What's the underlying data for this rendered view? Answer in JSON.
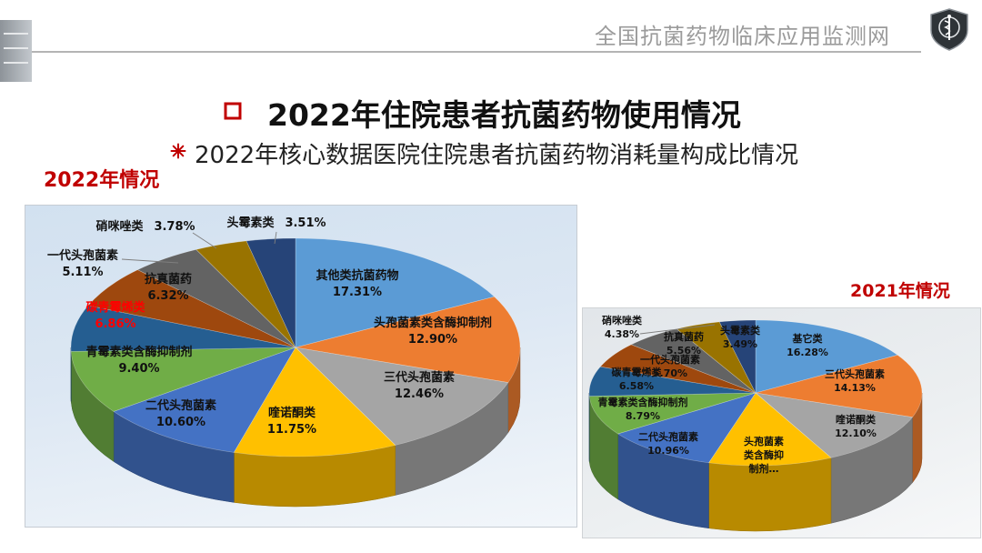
{
  "header": {
    "network_name": "全国抗菌药物临床应用监测网",
    "logo_icon": "shield-emblem-icon"
  },
  "slide": {
    "title": "2022年住院患者抗菌药物使用情况",
    "title_bullet_icon": "square-outline-icon",
    "subtitle": "2022年核心数据医院住院患者抗菌药物消耗量构成比情况",
    "subtitle_bullet_icon": "asterisk-icon"
  },
  "theme": {
    "title_red": "#C00000",
    "label_red": "#FF0000",
    "header_gray": "#9B9B9B"
  },
  "chart_data": [
    {
      "type": "pie",
      "three_d": true,
      "title": "2022年情况",
      "categories": [
        "其他类抗菌药物",
        "头孢菌素类含酶抑制剂",
        "三代头孢菌素",
        "喹诺酮类",
        "二代头孢菌素",
        "青霉素类含酶抑制剂",
        "碳青霉烯类",
        "抗真菌药",
        "一代头孢菌素",
        "硝咪唑类",
        "头霉素类"
      ],
      "values": [
        17.31,
        12.9,
        12.46,
        11.75,
        10.6,
        9.4,
        6.86,
        6.32,
        5.11,
        3.78,
        3.51
      ],
      "data_labels": [
        "17.31%",
        "12.90%",
        "12.46%",
        "11.75%",
        "10.60%",
        "9.40%",
        "6.86%",
        "6.32%",
        "5.11%",
        "3.78%",
        "3.51%"
      ],
      "colors": [
        "#5B9BD5",
        "#ED7D31",
        "#A5A5A5",
        "#FFC000",
        "#4472C4",
        "#70AD47",
        "#255E91",
        "#9E480E",
        "#636363",
        "#997300",
        "#264478"
      ]
    },
    {
      "type": "pie",
      "three_d": true,
      "title": "2021年情况",
      "categories": [
        "基它类",
        "三代头孢菌素",
        "喹诺酮类",
        "头孢菌素类含酶抑制剂…",
        "二代头孢菌素",
        "青霉素类含酶抑制剂",
        "碳青霉烯类",
        "一代头孢菌素",
        "抗真菌药",
        "硝咪唑类",
        "头霉素类"
      ],
      "values": [
        16.28,
        14.13,
        12.1,
        12.03,
        10.96,
        8.79,
        6.58,
        5.7,
        5.56,
        4.38,
        3.49
      ],
      "data_labels": [
        "16.28%",
        "14.13%",
        "12.10%",
        null,
        "10.96%",
        "8.79%",
        "6.58%",
        "5.70%",
        "5.56%",
        "4.38%",
        "3.49%"
      ],
      "colors": [
        "#5B9BD5",
        "#ED7D31",
        "#A5A5A5",
        "#FFC000",
        "#4472C4",
        "#70AD47",
        "#255E91",
        "#9E480E",
        "#636363",
        "#997300",
        "#264478"
      ]
    }
  ]
}
